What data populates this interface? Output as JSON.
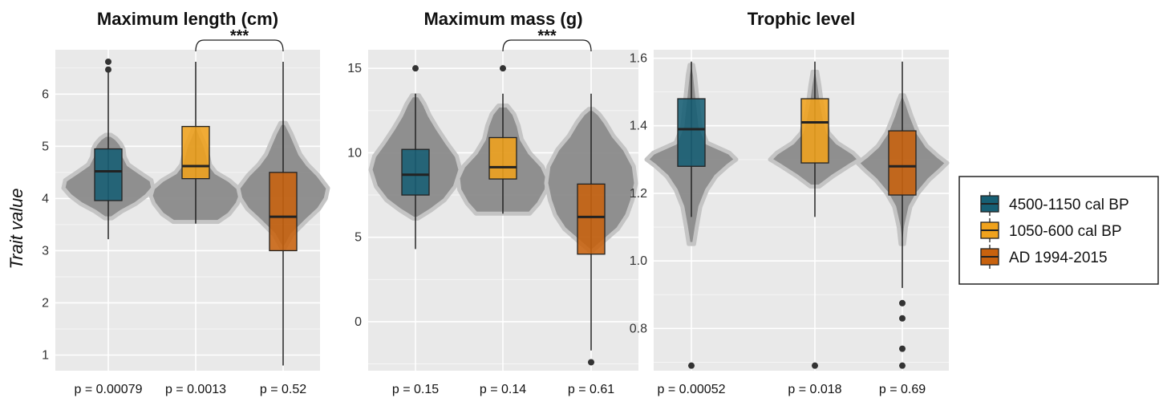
{
  "y_axis_label": "Trait value",
  "legend": {
    "position": "right",
    "entries": [
      {
        "label": "4500-1150 cal BP",
        "color": "#175f74"
      },
      {
        "label": "1050-600 cal BP",
        "color": "#f0a21c"
      },
      {
        "label": "AD 1994-2015",
        "color": "#c8620e"
      }
    ]
  },
  "colors": {
    "panel_background": "#e9e9e9",
    "grid": "#ffffff",
    "violin_fill": "#8a8a8a",
    "violin_outline": "#c4c4c4",
    "whisker": "#222222",
    "outlier": "#333333"
  },
  "chart_data": [
    {
      "type": "box",
      "title": "Maximum length (cm)",
      "ylim": [
        0.7,
        6.85
      ],
      "yticks": [
        1,
        2,
        3,
        4,
        5,
        6
      ],
      "grid": true,
      "groups": [
        {
          "name": "4500-1150 cal BP",
          "color": "#175f74",
          "whisker_low": 3.22,
          "q1": 3.96,
          "median": 4.52,
          "q3": 4.95,
          "whisker_high": 6.47,
          "outliers": [
            6.47,
            6.62
          ],
          "p_value": "p = 0.00079",
          "violin": [
            [
              3.62,
              0.08
            ],
            [
              3.75,
              0.3
            ],
            [
              3.9,
              0.62
            ],
            [
              4.05,
              0.85
            ],
            [
              4.2,
              1.0
            ],
            [
              4.35,
              0.96
            ],
            [
              4.5,
              0.7
            ],
            [
              4.65,
              0.45
            ],
            [
              4.8,
              0.36
            ],
            [
              4.95,
              0.34
            ],
            [
              5.05,
              0.28
            ],
            [
              5.15,
              0.18
            ],
            [
              5.22,
              0.06
            ]
          ]
        },
        {
          "name": "1050-600 cal BP",
          "color": "#f0a21c",
          "whisker_low": 3.52,
          "q1": 4.38,
          "median": 4.62,
          "q3": 5.38,
          "whisker_high": 6.62,
          "outliers": [],
          "p_value": "p = 0.0013",
          "violin": [
            [
              3.55,
              0.5
            ],
            [
              3.7,
              0.75
            ],
            [
              3.9,
              0.93
            ],
            [
              4.05,
              1.0
            ],
            [
              4.2,
              0.95
            ],
            [
              4.35,
              0.75
            ],
            [
              4.5,
              0.45
            ],
            [
              4.65,
              0.32
            ],
            [
              4.8,
              0.28
            ],
            [
              5.0,
              0.22
            ],
            [
              5.2,
              0.12
            ],
            [
              5.35,
              0.05
            ]
          ]
        },
        {
          "name": "AD 1994-2015",
          "color": "#c8620e",
          "whisker_low": 0.8,
          "q1": 3.0,
          "median": 3.65,
          "q3": 4.5,
          "whisker_high": 6.62,
          "outliers": [],
          "p_value": "p = 0.52",
          "violin": [
            [
              3.05,
              0.04
            ],
            [
              3.3,
              0.2
            ],
            [
              3.6,
              0.55
            ],
            [
              3.8,
              0.8
            ],
            [
              4.0,
              0.95
            ],
            [
              4.2,
              1.0
            ],
            [
              4.45,
              0.78
            ],
            [
              4.65,
              0.55
            ],
            [
              4.85,
              0.38
            ],
            [
              5.05,
              0.28
            ],
            [
              5.25,
              0.18
            ],
            [
              5.45,
              0.06
            ]
          ]
        }
      ],
      "significance": {
        "from": 1,
        "to": 2,
        "label": "***"
      }
    },
    {
      "type": "box",
      "title": "Maximum mass (g)",
      "ylim": [
        -2.9,
        16.1
      ],
      "yticks": [
        0,
        5,
        10,
        15
      ],
      "grid": true,
      "groups": [
        {
          "name": "4500-1150 cal BP",
          "color": "#175f74",
          "whisker_low": 4.3,
          "q1": 7.5,
          "median": 8.7,
          "q3": 10.2,
          "whisker_high": 13.5,
          "outliers": [
            15.0
          ],
          "p_value": "p = 0.15",
          "violin": [
            [
              6.1,
              0.05
            ],
            [
              6.6,
              0.35
            ],
            [
              7.2,
              0.65
            ],
            [
              8.0,
              0.88
            ],
            [
              9.0,
              1.0
            ],
            [
              9.8,
              0.92
            ],
            [
              10.6,
              0.7
            ],
            [
              11.4,
              0.5
            ],
            [
              12.2,
              0.32
            ],
            [
              12.9,
              0.2
            ],
            [
              13.4,
              0.08
            ]
          ]
        },
        {
          "name": "1050-600 cal BP",
          "color": "#f0a21c",
          "whisker_low": 6.4,
          "q1": 8.45,
          "median": 9.15,
          "q3": 10.9,
          "whisker_high": 13.5,
          "outliers": [
            15.0
          ],
          "p_value": "p = 0.14",
          "violin": [
            [
              6.4,
              0.6
            ],
            [
              7.0,
              0.8
            ],
            [
              7.8,
              0.97
            ],
            [
              8.5,
              1.0
            ],
            [
              9.2,
              0.88
            ],
            [
              10.0,
              0.6
            ],
            [
              10.8,
              0.42
            ],
            [
              11.6,
              0.35
            ],
            [
              12.3,
              0.25
            ],
            [
              12.8,
              0.1
            ]
          ]
        },
        {
          "name": "AD 1994-2015",
          "color": "#c8620e",
          "whisker_low": -1.7,
          "q1": 4.0,
          "median": 6.2,
          "q3": 8.15,
          "whisker_high": 13.5,
          "outliers": [
            -2.4
          ],
          "p_value": "p = 0.61",
          "violin": [
            [
              4.2,
              0.04
            ],
            [
              4.8,
              0.3
            ],
            [
              5.5,
              0.6
            ],
            [
              6.3,
              0.8
            ],
            [
              7.2,
              0.92
            ],
            [
              8.2,
              1.0
            ],
            [
              9.2,
              0.95
            ],
            [
              10.2,
              0.75
            ],
            [
              11.0,
              0.5
            ],
            [
              11.8,
              0.32
            ],
            [
              12.3,
              0.18
            ],
            [
              12.6,
              0.05
            ]
          ]
        }
      ],
      "significance": {
        "from": 1,
        "to": 2,
        "label": "***"
      }
    },
    {
      "type": "box",
      "title": "Trophic level",
      "ylim": [
        0.675,
        1.625
      ],
      "yticks": [
        0.8,
        1.0,
        1.2,
        1.4,
        1.6
      ],
      "grid": true,
      "groups": [
        {
          "name": "4500-1150 cal BP",
          "color": "#175f74",
          "whisker_low": 1.13,
          "q1": 1.28,
          "median": 1.39,
          "q3": 1.48,
          "whisker_high": 1.59,
          "outliers": [
            0.69
          ],
          "p_value": "p = 0.00052",
          "violin": [
            [
              1.05,
              0.06
            ],
            [
              1.1,
              0.12
            ],
            [
              1.16,
              0.2
            ],
            [
              1.21,
              0.35
            ],
            [
              1.25,
              0.55
            ],
            [
              1.28,
              0.8
            ],
            [
              1.3,
              1.0
            ],
            [
              1.32,
              0.85
            ],
            [
              1.35,
              0.35
            ],
            [
              1.4,
              0.2
            ],
            [
              1.45,
              0.16
            ],
            [
              1.5,
              0.12
            ],
            [
              1.55,
              0.08
            ],
            [
              1.58,
              0.04
            ]
          ]
        },
        {
          "name": "1050-600 cal BP",
          "color": "#f0a21c",
          "whisker_low": 1.13,
          "q1": 1.29,
          "median": 1.41,
          "q3": 1.48,
          "whisker_high": 1.59,
          "outliers": [
            0.69
          ],
          "p_value": "p = 0.018",
          "violin": [
            [
              1.22,
              0.1
            ],
            [
              1.25,
              0.4
            ],
            [
              1.28,
              0.75
            ],
            [
              1.3,
              1.0
            ],
            [
              1.32,
              0.85
            ],
            [
              1.35,
              0.5
            ],
            [
              1.38,
              0.3
            ],
            [
              1.42,
              0.22
            ],
            [
              1.47,
              0.15
            ],
            [
              1.52,
              0.1
            ],
            [
              1.56,
              0.05
            ]
          ]
        },
        {
          "name": "AD 1994-2015",
          "color": "#c8620e",
          "whisker_low": 0.92,
          "q1": 1.195,
          "median": 1.28,
          "q3": 1.385,
          "whisker_high": 1.59,
          "outliers": [
            0.69,
            0.74,
            0.83,
            0.875
          ],
          "p_value": "p = 0.69",
          "violin": [
            [
              1.05,
              0.04
            ],
            [
              1.1,
              0.08
            ],
            [
              1.16,
              0.18
            ],
            [
              1.2,
              0.35
            ],
            [
              1.24,
              0.6
            ],
            [
              1.27,
              0.85
            ],
            [
              1.29,
              1.0
            ],
            [
              1.31,
              0.8
            ],
            [
              1.34,
              0.55
            ],
            [
              1.38,
              0.35
            ],
            [
              1.43,
              0.2
            ],
            [
              1.47,
              0.1
            ],
            [
              1.49,
              0.04
            ]
          ]
        }
      ],
      "significance": null
    }
  ]
}
